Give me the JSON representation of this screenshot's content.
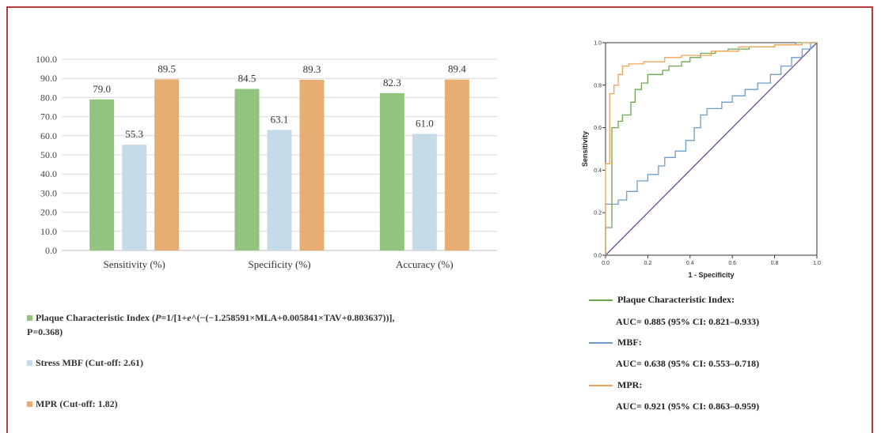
{
  "chart_data": [
    {
      "type": "bar",
      "categories": [
        "Sensitivity (%)",
        "Specificity (%)",
        "Accuracy (%)"
      ],
      "series": [
        {
          "name": "Plaque Characteristic Index",
          "values": [
            79.0,
            84.5,
            82.3
          ],
          "color": "#92c47f"
        },
        {
          "name": "Stress MBF",
          "values": [
            55.3,
            63.1,
            61.0
          ],
          "color": "#c6dbe8"
        },
        {
          "name": "MPR",
          "values": [
            89.5,
            89.3,
            89.4
          ],
          "color": "#e8ad72"
        }
      ],
      "value_labels": [
        [
          "79.0",
          "84.5",
          "82.3"
        ],
        [
          "55.3",
          "63.1",
          "61.0"
        ],
        [
          "89.5",
          "89.3",
          "89.4"
        ]
      ],
      "yticks": [
        "0.0",
        "10.0",
        "20.0",
        "30.0",
        "40.0",
        "50.0",
        "60.0",
        "70.0",
        "80.0",
        "90.0",
        "100.0"
      ],
      "ylim": [
        0,
        100
      ],
      "grid": true,
      "legend": [
        {
          "line1_a": "Plaque Characteristic Index (",
          "P": "P",
          "line1_b": "=1/[1+",
          "e": "e",
          "line1_c": "^(−(−1.258591×MLA+0.005841×TAV+0.803637))],",
          "line2": "P=0.368)",
          "color": "#92c47f"
        },
        {
          "text": "Stress MBF (Cut-off: 2.61)",
          "color": "#c6dbe8"
        },
        {
          "text": "MPR (Cut-off: 1.82)",
          "color": "#e8ad72"
        }
      ],
      "legend_placement": "bottom"
    },
    {
      "type": "line",
      "xlabel": "1 - Specificity",
      "ylabel": "Sensitivity",
      "xlim": [
        0,
        1
      ],
      "ylim": [
        0,
        1
      ],
      "xticks": [
        "0.0",
        "0.2",
        "0.4",
        "0.6",
        "0.8",
        "1.0"
      ],
      "yticks": [
        "0.0",
        "0.2",
        "0.4",
        "0.6",
        "0.8",
        "1.0"
      ],
      "series": [
        {
          "name": "Plaque Characteristic Index",
          "color": "#6aa84f",
          "points": [
            [
              0,
              0
            ],
            [
              0,
              0.13
            ],
            [
              0.03,
              0.13
            ],
            [
              0.03,
              0.6
            ],
            [
              0.06,
              0.6
            ],
            [
              0.06,
              0.63
            ],
            [
              0.08,
              0.63
            ],
            [
              0.08,
              0.66
            ],
            [
              0.12,
              0.66
            ],
            [
              0.12,
              0.72
            ],
            [
              0.14,
              0.72
            ],
            [
              0.14,
              0.78
            ],
            [
              0.17,
              0.78
            ],
            [
              0.17,
              0.81
            ],
            [
              0.2,
              0.81
            ],
            [
              0.2,
              0.85
            ],
            [
              0.27,
              0.85
            ],
            [
              0.27,
              0.87
            ],
            [
              0.3,
              0.87
            ],
            [
              0.3,
              0.89
            ],
            [
              0.36,
              0.89
            ],
            [
              0.36,
              0.91
            ],
            [
              0.4,
              0.91
            ],
            [
              0.4,
              0.93
            ],
            [
              0.45,
              0.93
            ],
            [
              0.45,
              0.95
            ],
            [
              0.52,
              0.95
            ],
            [
              0.52,
              0.96
            ],
            [
              0.58,
              0.96
            ],
            [
              0.58,
              0.97
            ],
            [
              0.68,
              0.97
            ],
            [
              0.68,
              0.98
            ],
            [
              0.8,
              0.98
            ],
            [
              0.8,
              0.99
            ],
            [
              0.9,
              0.99
            ],
            [
              0.9,
              1.0
            ],
            [
              1.0,
              1.0
            ]
          ]
        },
        {
          "name": "MBF",
          "color": "#6d9ec9",
          "points": [
            [
              0,
              0
            ],
            [
              0,
              0.24
            ],
            [
              0.06,
              0.24
            ],
            [
              0.06,
              0.26
            ],
            [
              0.1,
              0.26
            ],
            [
              0.1,
              0.3
            ],
            [
              0.15,
              0.3
            ],
            [
              0.15,
              0.35
            ],
            [
              0.2,
              0.35
            ],
            [
              0.2,
              0.38
            ],
            [
              0.25,
              0.38
            ],
            [
              0.25,
              0.42
            ],
            [
              0.28,
              0.42
            ],
            [
              0.28,
              0.46
            ],
            [
              0.33,
              0.46
            ],
            [
              0.33,
              0.49
            ],
            [
              0.38,
              0.49
            ],
            [
              0.38,
              0.54
            ],
            [
              0.42,
              0.54
            ],
            [
              0.42,
              0.6
            ],
            [
              0.45,
              0.6
            ],
            [
              0.45,
              0.66
            ],
            [
              0.48,
              0.66
            ],
            [
              0.48,
              0.69
            ],
            [
              0.55,
              0.69
            ],
            [
              0.55,
              0.72
            ],
            [
              0.6,
              0.72
            ],
            [
              0.6,
              0.75
            ],
            [
              0.66,
              0.75
            ],
            [
              0.66,
              0.78
            ],
            [
              0.72,
              0.78
            ],
            [
              0.72,
              0.81
            ],
            [
              0.78,
              0.81
            ],
            [
              0.78,
              0.85
            ],
            [
              0.83,
              0.85
            ],
            [
              0.83,
              0.89
            ],
            [
              0.88,
              0.89
            ],
            [
              0.88,
              0.93
            ],
            [
              0.93,
              0.93
            ],
            [
              0.93,
              0.97
            ],
            [
              0.97,
              0.97
            ],
            [
              0.97,
              1.0
            ],
            [
              1.0,
              1.0
            ]
          ]
        },
        {
          "name": "MPR",
          "color": "#f0a35a",
          "points": [
            [
              0,
              0
            ],
            [
              0,
              0.43
            ],
            [
              0.02,
              0.43
            ],
            [
              0.02,
              0.76
            ],
            [
              0.04,
              0.76
            ],
            [
              0.04,
              0.8
            ],
            [
              0.06,
              0.8
            ],
            [
              0.06,
              0.85
            ],
            [
              0.08,
              0.85
            ],
            [
              0.08,
              0.89
            ],
            [
              0.11,
              0.89
            ],
            [
              0.11,
              0.9
            ],
            [
              0.18,
              0.9
            ],
            [
              0.18,
              0.91
            ],
            [
              0.28,
              0.91
            ],
            [
              0.28,
              0.93
            ],
            [
              0.36,
              0.93
            ],
            [
              0.36,
              0.94
            ],
            [
              0.5,
              0.94
            ],
            [
              0.5,
              0.96
            ],
            [
              0.63,
              0.96
            ],
            [
              0.63,
              0.98
            ],
            [
              0.8,
              0.98
            ],
            [
              0.8,
              0.99
            ],
            [
              0.93,
              0.99
            ],
            [
              0.93,
              1.0
            ],
            [
              1.0,
              1.0
            ]
          ]
        },
        {
          "name": "",
          "color": "#6a4a9c",
          "points": [
            [
              0,
              0
            ],
            [
              1,
              1
            ]
          ]
        }
      ],
      "legend": [
        {
          "label": "Plaque Characteristic Index:",
          "auc": "AUC= 0.885 (95% CI: 0.821–0.933)",
          "color": "#6aa84f"
        },
        {
          "label": "MBF:",
          "auc": "AUC= 0.638 (95% CI: 0.553–0.718)",
          "color": "#6d9ec9"
        },
        {
          "label": "MPR:",
          "auc": "AUC= 0.921 (95% CI: 0.863–0.959)",
          "color": "#f0a35a"
        }
      ],
      "legend_placement": "bottom"
    }
  ]
}
